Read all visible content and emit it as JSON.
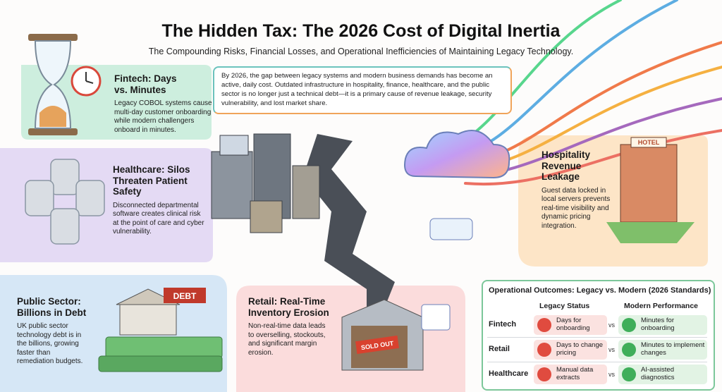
{
  "header": {
    "title": "The Hidden Tax: The 2026 Cost of Digital Inertia",
    "subtitle": "The Compounding Risks, Financial Losses, and Operational Inefficiencies of Maintaining Legacy Technology."
  },
  "intro": "By 2026, the gap between legacy systems and modern business demands has become an active, daily cost. Outdated infrastructure in hospitality, finance, healthcare, and the public sector is no longer just a technical debt—it is a primary cause of revenue leakage, security vulnerability, and lost market share.",
  "panels": [
    {
      "title": "Fintech: Days vs. Minutes",
      "body": "Legacy COBOL systems cause multi-day customer onboarding while modern challengers onboard in minutes."
    },
    {
      "title": "Healthcare: Silos Threaten Patient Safety",
      "body": "Disconnected departmental software creates clinical risk at the point of care and cyber vulnerability."
    },
    {
      "title": "Public Sector: Billions in Debt",
      "body": "UK public sector technology debt is in the billions, growing faster than remediation budgets."
    },
    {
      "title": "Retail: Real-Time Inventory Erosion",
      "body": "Non-real-time data leads to overselling, stockouts, and significant margin erosion."
    },
    {
      "title": "Hospitality Revenue Leakage",
      "body": "Guest data locked in local servers prevents real-time visibility and dynamic pricing integration."
    }
  ],
  "illustration_labels": {
    "debt": "DEBT",
    "sold_out": "SOLD OUT",
    "hotel": "HOTEL"
  },
  "table": {
    "title": "Operational Outcomes: Legacy vs. Modern (2026 Standards)",
    "columns": [
      "Legacy Status",
      "Modern Performance"
    ],
    "separator": "vs",
    "rows": [
      [
        "Fintech",
        "Days for onboarding",
        "Minutes for onboarding"
      ],
      [
        "Retail",
        "Days to change pricing",
        "Minutes to implement changes"
      ],
      [
        "Healthcare",
        "Manual data extracts",
        "AI-assisted diagnostics"
      ]
    ]
  }
}
